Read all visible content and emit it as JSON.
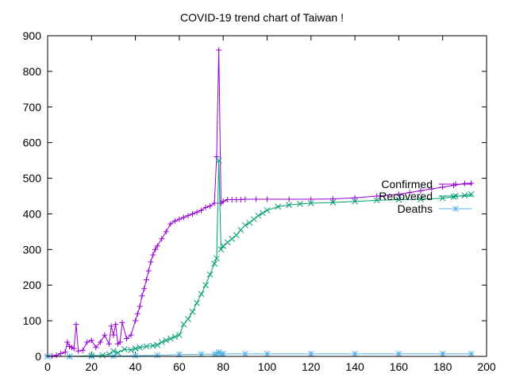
{
  "chart_data": {
    "type": "line",
    "title": "COVID-19 trend chart of Taiwan !",
    "xlabel": "",
    "ylabel": "",
    "xlim": [
      0,
      200
    ],
    "ylim": [
      0,
      900
    ],
    "xticks": [
      0,
      20,
      40,
      60,
      80,
      100,
      120,
      140,
      160,
      180,
      200
    ],
    "yticks": [
      0,
      100,
      200,
      300,
      400,
      500,
      600,
      700,
      800,
      900
    ],
    "grid": false,
    "legend_position": "right-inside",
    "series": [
      {
        "name": "Confirmed",
        "color": "#9400D3",
        "marker": "plus",
        "x": [
          0,
          2,
          4,
          6,
          8,
          9,
          10,
          11,
          12,
          13,
          14,
          16,
          18,
          20,
          22,
          24,
          26,
          28,
          29,
          30,
          31,
          32,
          33,
          34,
          36,
          38,
          40,
          41,
          42,
          43,
          44,
          45,
          46,
          47,
          48,
          49,
          50,
          52,
          54,
          56,
          58,
          60,
          62,
          64,
          66,
          68,
          70,
          72,
          74,
          76,
          77,
          78,
          79,
          80,
          82,
          84,
          86,
          88,
          90,
          95,
          100,
          110,
          120,
          130,
          140,
          150,
          160,
          165,
          170,
          175,
          180,
          185,
          190,
          193
        ],
        "y": [
          1,
          1,
          3,
          8,
          12,
          40,
          28,
          25,
          22,
          90,
          15,
          17,
          40,
          45,
          25,
          40,
          60,
          35,
          85,
          60,
          90,
          35,
          40,
          95,
          50,
          60,
          100,
          120,
          140,
          170,
          190,
          215,
          240,
          265,
          285,
          300,
          310,
          330,
          350,
          372,
          380,
          385,
          390,
          395,
          400,
          405,
          410,
          418,
          422,
          430,
          560,
          860,
          430,
          435,
          440,
          440,
          440,
          440,
          441,
          441,
          441,
          441,
          441,
          442,
          445,
          450,
          455,
          460,
          465,
          470,
          475,
          480,
          485,
          486
        ]
      },
      {
        "name": "Recovered",
        "color": "#009E73",
        "marker": "cross",
        "x": [
          0,
          10,
          20,
          25,
          28,
          30,
          32,
          35,
          38,
          40,
          42,
          45,
          48,
          50,
          52,
          54,
          56,
          58,
          60,
          62,
          64,
          66,
          68,
          70,
          72,
          74,
          76,
          77,
          78,
          79,
          80,
          82,
          84,
          86,
          88,
          90,
          92,
          94,
          96,
          98,
          100,
          105,
          110,
          115,
          120,
          130,
          140,
          150,
          160,
          170,
          180,
          185,
          190,
          193
        ],
        "y": [
          0,
          0,
          2,
          3,
          6,
          15,
          10,
          20,
          18,
          22,
          25,
          28,
          30,
          32,
          40,
          45,
          50,
          55,
          60,
          90,
          105,
          125,
          150,
          175,
          200,
          230,
          260,
          275,
          550,
          300,
          310,
          320,
          330,
          340,
          355,
          368,
          375,
          385,
          395,
          402,
          410,
          420,
          425,
          428,
          430,
          432,
          435,
          438,
          440,
          441,
          444,
          448,
          452,
          455
        ]
      },
      {
        "name": "Deaths",
        "color": "#56B4E9",
        "marker": "star",
        "x": [
          0,
          10,
          20,
          30,
          40,
          50,
          60,
          70,
          76,
          77,
          78,
          79,
          80,
          90,
          100,
          120,
          140,
          160,
          180,
          193
        ],
        "y": [
          0,
          0,
          0,
          1,
          2,
          3,
          5,
          6,
          6,
          7,
          12,
          7,
          7,
          7,
          7,
          7,
          7,
          7,
          7,
          7
        ]
      }
    ]
  }
}
